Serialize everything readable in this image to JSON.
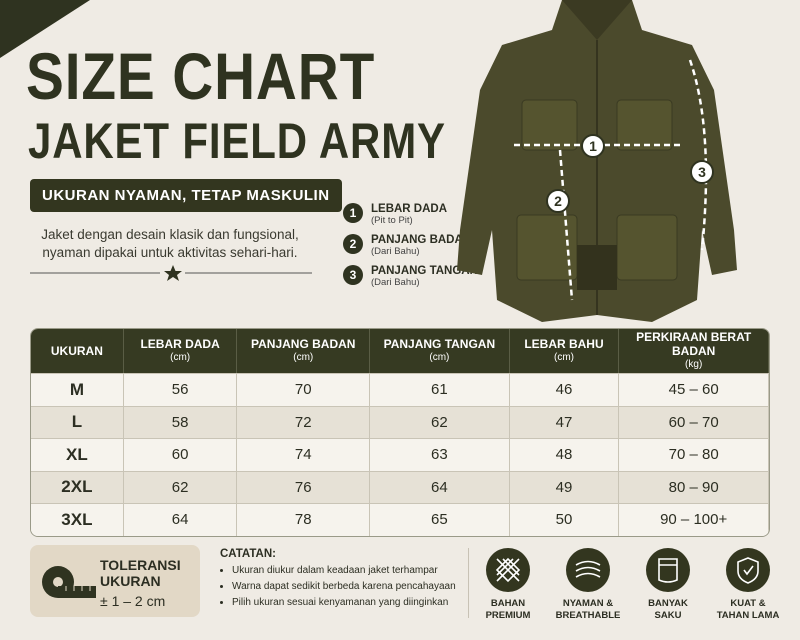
{
  "header": {
    "title_line1": "SIZE CHART",
    "title_line2": "JAKET FIELD ARMY",
    "tagline": "UKURAN NYAMAN, TETAP MASKULIN",
    "description_line1": "Jaket dengan desain klasik dan fungsional,",
    "description_line2": "nyaman dipakai untuk aktivitas sehari-hari."
  },
  "measurements": [
    {
      "number": "1",
      "label": "LEBAR DADA",
      "note": "(Pit to Pit)"
    },
    {
      "number": "2",
      "label": "PANJANG BADAN",
      "note": "(Dari Bahu)"
    },
    {
      "number": "3",
      "label": "PANJANG TANGAN",
      "note": "(Dari Bahu)"
    }
  ],
  "table": {
    "headers": [
      {
        "label": "UKURAN"
      },
      {
        "label": "LEBAR DADA",
        "unit": "(cm)"
      },
      {
        "label": "PANJANG BADAN",
        "unit": "(cm)"
      },
      {
        "label": "PANJANG TANGAN",
        "unit": "(cm)"
      },
      {
        "label": "LEBAR BAHU",
        "unit": "(cm)"
      },
      {
        "label": "PERKIRAAN BERAT BADAN",
        "unit": "(kg)"
      }
    ],
    "rows": [
      [
        "M",
        56,
        70,
        61,
        46,
        "45 – 60"
      ],
      [
        "L",
        58,
        72,
        62,
        47,
        "60 – 70"
      ],
      [
        "XL",
        60,
        74,
        63,
        48,
        "70 – 80"
      ],
      [
        "2XL",
        62,
        76,
        64,
        49,
        "80 – 90"
      ],
      [
        "3XL",
        64,
        78,
        65,
        50,
        "90 – 100+"
      ]
    ]
  },
  "tolerance": {
    "title_line1": "TOLERANSI",
    "title_line2": "UKURAN",
    "value": "± 1 – 2 cm"
  },
  "notes": {
    "title": "CATATAN:",
    "items": [
      "Ukuran diukur dalam keadaan jaket terhampar",
      "Warna dapat sedikit berbeda karena pencahayaan",
      "Pilih ukuran sesuai kenyamanan yang diinginkan"
    ]
  },
  "features": [
    {
      "line1": "BAHAN",
      "line2": "PREMIUM"
    },
    {
      "line1": "NYAMAN &",
      "line2": "BREATHABLE"
    },
    {
      "line1": "BANYAK",
      "line2": "SAKU"
    },
    {
      "line1": "KUAT &",
      "line2": "TAHAN LAMA"
    }
  ]
}
